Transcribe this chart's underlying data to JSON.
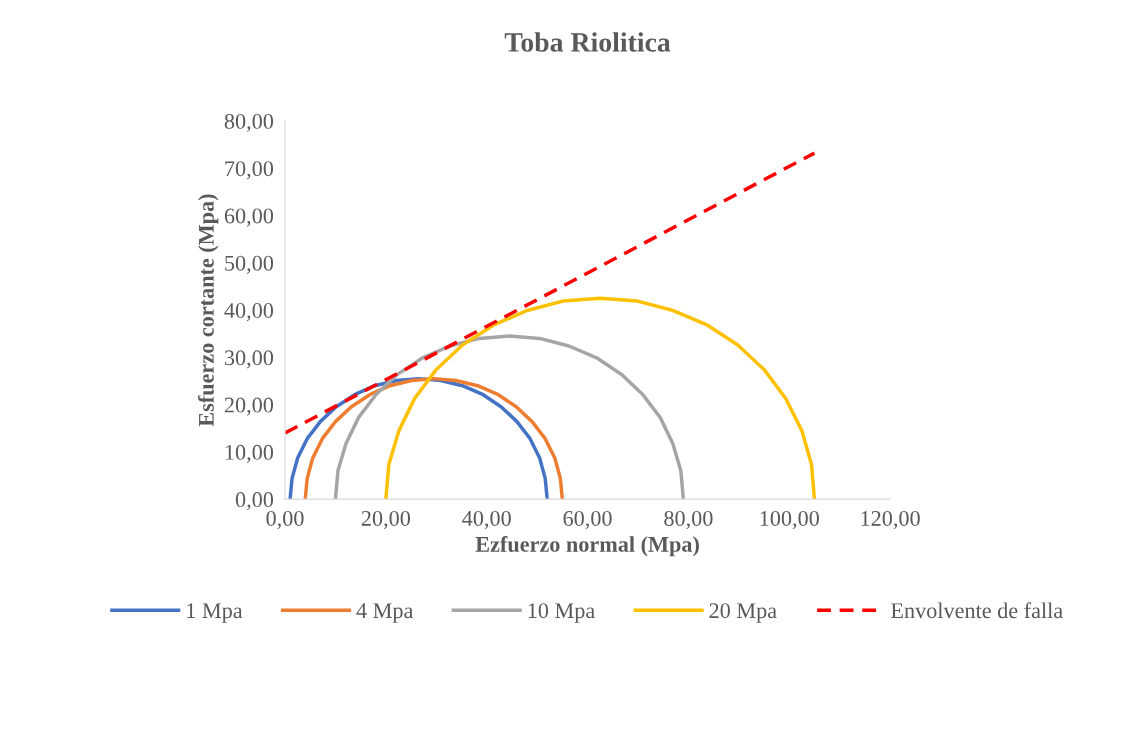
{
  "chart_data": {
    "type": "line",
    "title": "Toba Riolitica",
    "xlabel": "Ezfuerzo normal (Mpa)",
    "ylabel": "Esfuerzo cortante (Mpa)",
    "xlim": [
      0,
      120
    ],
    "ylim": [
      0,
      80
    ],
    "xticks": [
      {
        "value": 0,
        "label": "0,00"
      },
      {
        "value": 20,
        "label": "20,00"
      },
      {
        "value": 40,
        "label": "40,00"
      },
      {
        "value": 60,
        "label": "60,00"
      },
      {
        "value": 80,
        "label": "80,00"
      },
      {
        "value": 100,
        "label": "100,00"
      },
      {
        "value": 120,
        "label": "120,00"
      }
    ],
    "yticks": [
      {
        "value": 0,
        "label": "0,00"
      },
      {
        "value": 10,
        "label": "10,00"
      },
      {
        "value": 20,
        "label": "20,00"
      },
      {
        "value": 30,
        "label": "30,00"
      },
      {
        "value": 40,
        "label": "40,00"
      },
      {
        "value": 50,
        "label": "50,00"
      },
      {
        "value": 60,
        "label": "60,00"
      },
      {
        "value": 70,
        "label": "70,00"
      },
      {
        "value": 80,
        "label": "80,00"
      }
    ],
    "grid": false,
    "legend": "bottom",
    "marker": "none",
    "series": [
      {
        "name": "1 Mpa",
        "color": "#4472c4",
        "line_style": "solid",
        "x": [
          1.0,
          1.4,
          2.5,
          4.4,
          7.0,
          10.1,
          13.8,
          17.8,
          22.1,
          26.5,
          30.9,
          35.2,
          39.3,
          42.9,
          46.0,
          48.6,
          50.5,
          51.6,
          52.0
        ],
        "values": [
          0,
          4.4,
          8.7,
          12.8,
          16.4,
          19.5,
          22.1,
          24.0,
          25.1,
          25.5,
          25.1,
          24.0,
          22.1,
          19.5,
          16.4,
          12.8,
          8.7,
          4.4,
          0
        ]
      },
      {
        "name": "4 Mpa",
        "color": "#ed7d31",
        "line_style": "solid",
        "x": [
          4.0,
          4.4,
          5.5,
          7.4,
          10.0,
          13.1,
          16.8,
          20.8,
          25.1,
          29.5,
          33.9,
          38.2,
          42.3,
          45.9,
          49.0,
          51.6,
          53.5,
          54.6,
          55.0
        ],
        "values": [
          0,
          4.4,
          8.7,
          12.8,
          16.4,
          19.5,
          22.1,
          24.0,
          25.1,
          25.5,
          25.1,
          24.0,
          22.1,
          19.5,
          16.4,
          12.8,
          8.7,
          4.4,
          0
        ]
      },
      {
        "name": "10 Mpa",
        "color": "#a5a5a5",
        "line_style": "solid",
        "x": [
          10.0,
          10.5,
          12.1,
          14.6,
          18.1,
          22.3,
          27.3,
          32.7,
          38.5,
          44.5,
          50.5,
          56.3,
          61.8,
          66.7,
          70.9,
          74.4,
          76.9,
          78.5,
          79.0
        ],
        "values": [
          0,
          6.0,
          11.8,
          17.3,
          22.2,
          26.4,
          29.9,
          32.4,
          34.0,
          34.5,
          34.0,
          32.4,
          29.9,
          26.4,
          22.2,
          17.3,
          11.8,
          6.0,
          0
        ]
      },
      {
        "name": "20 Mpa",
        "color": "#ffc000",
        "line_style": "solid",
        "x": [
          20.0,
          20.6,
          22.6,
          25.7,
          29.9,
          35.2,
          41.3,
          48.0,
          55.1,
          62.5,
          69.9,
          77.0,
          83.8,
          89.8,
          95.1,
          99.3,
          102.5,
          104.4,
          105.0
        ],
        "values": [
          0,
          7.4,
          14.5,
          21.3,
          27.3,
          32.6,
          36.8,
          39.9,
          41.9,
          42.5,
          41.9,
          39.9,
          36.8,
          32.6,
          27.3,
          21.3,
          14.5,
          7.4,
          0
        ]
      },
      {
        "name": "Envolvente de falla",
        "color": "#ff0000",
        "line_style": "dashed",
        "x": [
          0,
          105
        ],
        "values": [
          14,
          73.2
        ]
      }
    ]
  }
}
